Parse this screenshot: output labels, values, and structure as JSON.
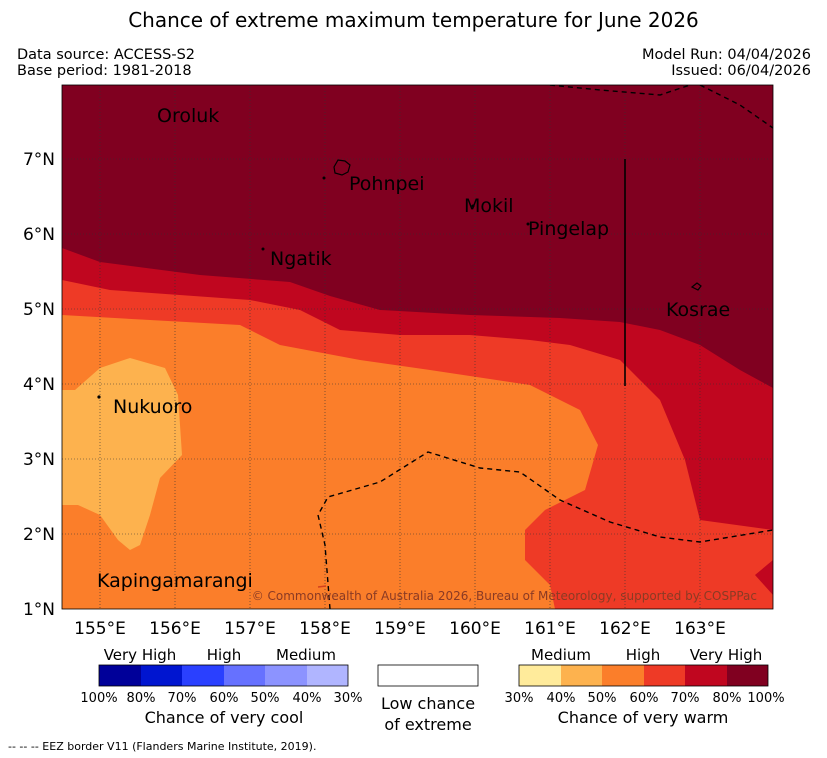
{
  "title": "Chance of extreme maximum temperature for June 2026",
  "meta": {
    "data_source": "Data source: ACCESS-S2",
    "base_period": "Base period: 1981-2018",
    "model_run": "Model Run: 04/04/2026",
    "issued": "Issued: 06/04/2026"
  },
  "map": {
    "lon_range": [
      154.5,
      164.0
    ],
    "lat_range": [
      1.0,
      8.0
    ],
    "lon_ticks": [
      "155°E",
      "156°E",
      "157°E",
      "158°E",
      "159°E",
      "160°E",
      "161°E",
      "162°E",
      "163°E"
    ],
    "lat_ticks": [
      "1°N",
      "2°N",
      "3°N",
      "4°N",
      "5°N",
      "6°N",
      "7°N"
    ],
    "places": [
      {
        "name": "Oroluk"
      },
      {
        "name": "Pohnpei"
      },
      {
        "name": "Mokil"
      },
      {
        "name": "Pingelap"
      },
      {
        "name": "Ngatik"
      },
      {
        "name": "Kosrae"
      },
      {
        "name": "Nukuoro"
      },
      {
        "name": "Kapingamarangi"
      }
    ],
    "copyright": "© Commonwealth of Australia 2026, Bureau of Meteorology, supported by COSPPac"
  },
  "colors": {
    "warm_80_100": "#800020",
    "warm_70_80": "#c0061f",
    "warm_60_70": "#ee3a26",
    "warm_50_60": "#fb7e2a",
    "warm_40_50": "#fdb24e",
    "warm_30_40": "#ffeb9b",
    "cool_80_100": "#000099",
    "cool_70_80": "#0015d0",
    "cool_60_70": "#2a40ff",
    "cool_50_60": "#6671ff",
    "cool_40_50": "#8c93ff",
    "cool_30_40": "#b0b5ff"
  },
  "legend": {
    "cool": {
      "headers": [
        "Very High",
        "High",
        "Medium"
      ],
      "percents": [
        "100%",
        "80%",
        "70%",
        "60%",
        "50%",
        "40%",
        "30%"
      ],
      "caption": "Chance of very cool"
    },
    "low": {
      "line1": "Low chance",
      "line2": "of extreme"
    },
    "warm": {
      "headers": [
        "Medium",
        "High",
        "Very High"
      ],
      "percents": [
        "30%",
        "40%",
        "50%",
        "60%",
        "70%",
        "80%",
        "100%"
      ],
      "caption": "Chance of very warm"
    }
  },
  "footnote": "--  --  -- EEZ border V11 (Flanders Marine Institute, 2019)."
}
